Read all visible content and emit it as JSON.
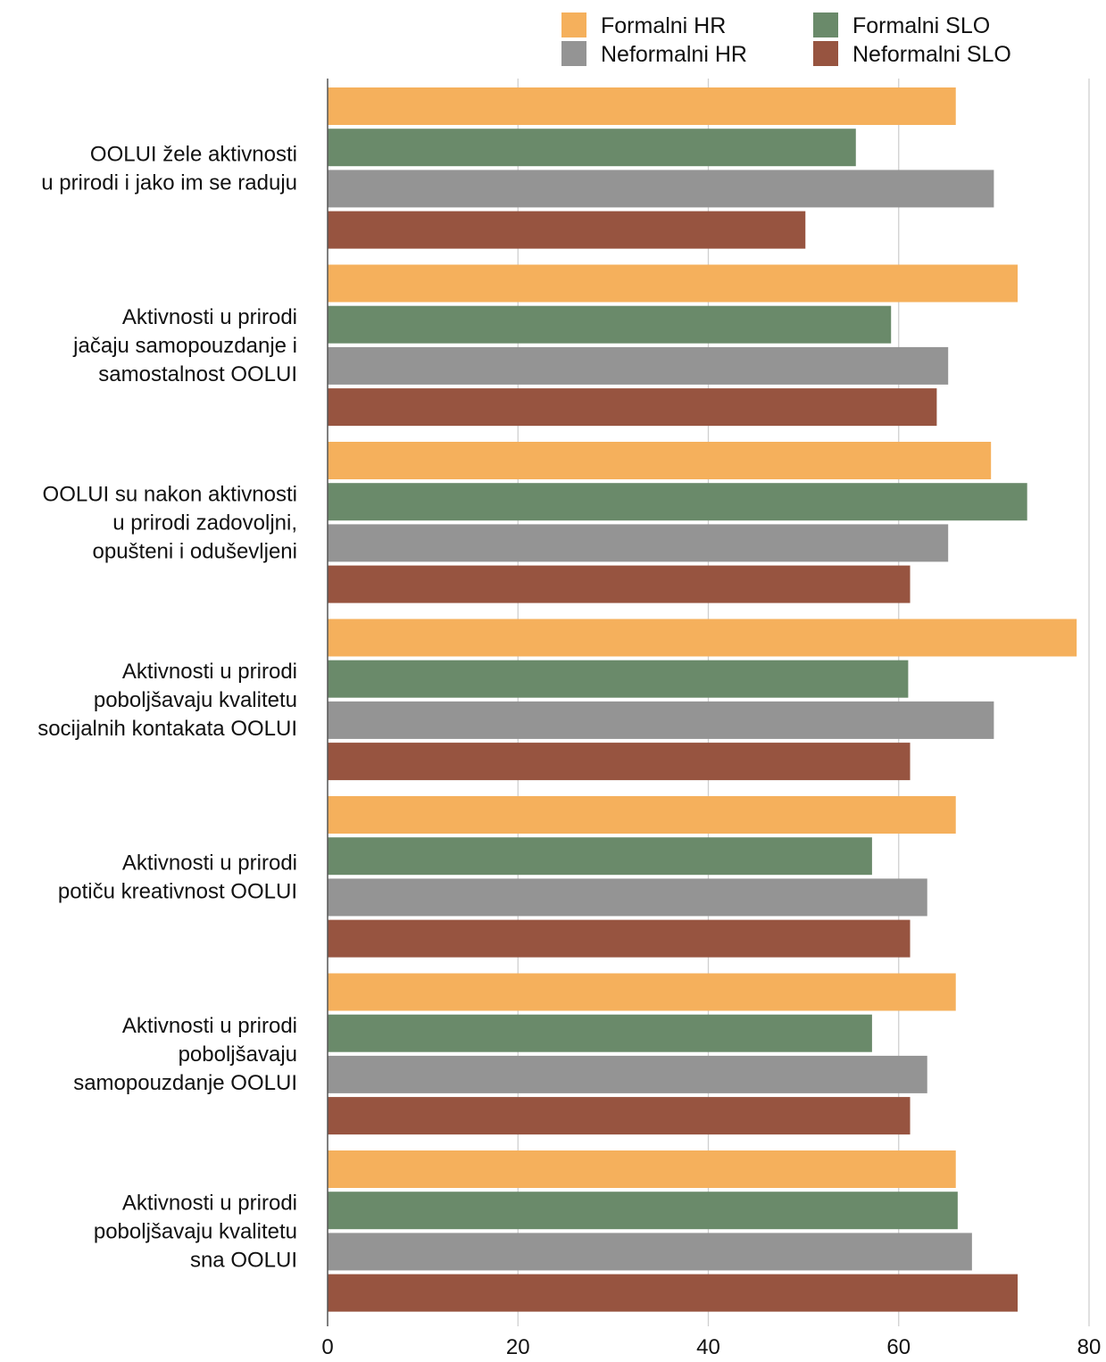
{
  "chart_data": {
    "type": "bar",
    "orientation": "horizontal",
    "title": "",
    "xlabel": "",
    "ylabel": "",
    "xlim": [
      0,
      80
    ],
    "ticks": [
      "0",
      "20",
      "40",
      "60",
      "80"
    ],
    "tick_values": [
      0,
      20,
      40,
      60,
      80
    ],
    "grid": "vertical",
    "legend_position": "top-right",
    "categories": [
      [
        "OOLUI žele aktivnosti",
        "u prirodi i jako im se raduju"
      ],
      [
        "Aktivnosti u prirodi",
        "jačaju samopouzdanje i",
        "samostalnost OOLUI"
      ],
      [
        "OOLUI su nakon aktivnosti",
        "u prirodi zadovoljni,",
        "opušteni i oduševljeni"
      ],
      [
        "Aktivnosti u prirodi",
        "poboljšavaju kvalitetu",
        "socijalnih kontakata OOLUI"
      ],
      [
        "Aktivnosti u prirodi",
        "potiču kreativnost OOLUI"
      ],
      [
        "Aktivnosti u prirodi",
        "poboljšavaju",
        "samopouzdanje OOLUI"
      ],
      [
        "Aktivnosti u prirodi",
        "poboljšavaju kvalitetu",
        "sna OOLUI"
      ]
    ],
    "series": [
      {
        "name": "Formalni HR",
        "color": "#F5B05C",
        "values": [
          66,
          72.5,
          69.7,
          78.7,
          66,
          66,
          66
        ]
      },
      {
        "name": "Formalni SLO",
        "color": "#6A8A6A",
        "values": [
          55.5,
          59.2,
          73.5,
          61,
          57.2,
          57.2,
          66.2
        ]
      },
      {
        "name": "Neformalni HR",
        "color": "#949494",
        "values": [
          70,
          65.2,
          65.2,
          70,
          63,
          63,
          67.7
        ]
      },
      {
        "name": "Neformalni SLO",
        "color": "#975440",
        "values": [
          50.2,
          64,
          61.2,
          61.2,
          61.2,
          61.2,
          72.5
        ]
      }
    ]
  }
}
